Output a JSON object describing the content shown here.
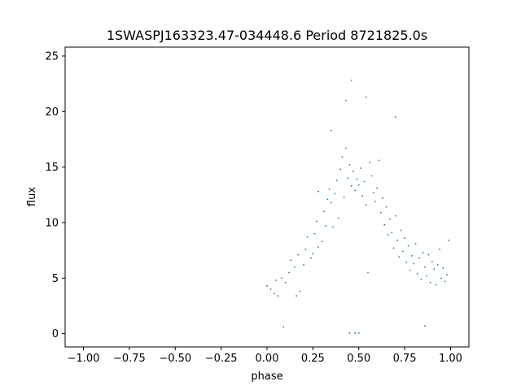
{
  "chart_data": {
    "type": "scatter",
    "title": "1SWASPJ163323.47-034448.6 Period 8721825.0s",
    "xlabel": "phase",
    "ylabel": "flux",
    "xlim": [
      -1.1,
      1.1
    ],
    "ylim": [
      -1.2,
      25.8
    ],
    "xticks": [
      -1.0,
      -0.75,
      -0.5,
      -0.25,
      0.0,
      0.25,
      0.5,
      0.75,
      1.0
    ],
    "xtick_labels": [
      "−1.00",
      "−0.75",
      "−0.50",
      "−0.25",
      "0.00",
      "0.25",
      "0.50",
      "0.75",
      "1.00"
    ],
    "yticks": [
      0,
      5,
      10,
      15,
      20,
      25
    ],
    "ytick_labels": [
      "0",
      "5",
      "10",
      "15",
      "20",
      "25"
    ],
    "grid": false,
    "series": [
      {
        "color": "#1f77b4",
        "points": [
          [
            0.0,
            4.3
          ],
          [
            0.02,
            4.0
          ],
          [
            0.04,
            3.6
          ],
          [
            0.05,
            4.8
          ],
          [
            0.06,
            3.4
          ],
          [
            0.08,
            5.0
          ],
          [
            0.1,
            4.6
          ],
          [
            0.12,
            5.5
          ],
          [
            0.13,
            6.6
          ],
          [
            0.15,
            6.0
          ],
          [
            0.17,
            7.1
          ],
          [
            0.18,
            3.8
          ],
          [
            0.2,
            6.2
          ],
          [
            0.21,
            7.6
          ],
          [
            0.22,
            8.7
          ],
          [
            0.24,
            6.8
          ],
          [
            0.25,
            7.2
          ],
          [
            0.26,
            9.0
          ],
          [
            0.27,
            10.1
          ],
          [
            0.28,
            7.8
          ],
          [
            0.3,
            8.3
          ],
          [
            0.31,
            11.0
          ],
          [
            0.32,
            9.7
          ],
          [
            0.33,
            12.1
          ],
          [
            0.34,
            13.0
          ],
          [
            0.35,
            11.8
          ],
          [
            0.36,
            9.6
          ],
          [
            0.37,
            12.6
          ],
          [
            0.38,
            13.8
          ],
          [
            0.39,
            10.4
          ],
          [
            0.4,
            14.8
          ],
          [
            0.41,
            15.9
          ],
          [
            0.42,
            12.3
          ],
          [
            0.43,
            16.7
          ],
          [
            0.44,
            14.0
          ],
          [
            0.45,
            15.2
          ],
          [
            0.46,
            13.3
          ],
          [
            0.47,
            14.6
          ],
          [
            0.48,
            12.9
          ],
          [
            0.49,
            13.9
          ],
          [
            0.5,
            13.4
          ],
          [
            0.51,
            14.9
          ],
          [
            0.52,
            12.4
          ],
          [
            0.53,
            13.7
          ],
          [
            0.54,
            11.6
          ],
          [
            0.55,
            5.5
          ],
          [
            0.56,
            15.4
          ],
          [
            0.57,
            14.2
          ],
          [
            0.58,
            12.7
          ],
          [
            0.59,
            11.9
          ],
          [
            0.6,
            13.1
          ],
          [
            0.61,
            15.6
          ],
          [
            0.62,
            10.9
          ],
          [
            0.63,
            12.2
          ],
          [
            0.64,
            9.8
          ],
          [
            0.65,
            11.4
          ],
          [
            0.66,
            8.9
          ],
          [
            0.67,
            10.3
          ],
          [
            0.68,
            9.1
          ],
          [
            0.69,
            7.7
          ],
          [
            0.7,
            10.6
          ],
          [
            0.71,
            8.4
          ],
          [
            0.72,
            6.9
          ],
          [
            0.73,
            9.3
          ],
          [
            0.74,
            7.4
          ],
          [
            0.75,
            8.6
          ],
          [
            0.76,
            6.4
          ],
          [
            0.77,
            7.9
          ],
          [
            0.78,
            5.7
          ],
          [
            0.79,
            7.0
          ],
          [
            0.8,
            6.3
          ],
          [
            0.81,
            8.1
          ],
          [
            0.82,
            5.4
          ],
          [
            0.83,
            6.8
          ],
          [
            0.84,
            4.9
          ],
          [
            0.85,
            7.3
          ],
          [
            0.86,
            6.0
          ],
          [
            0.87,
            5.2
          ],
          [
            0.88,
            7.1
          ],
          [
            0.89,
            4.6
          ],
          [
            0.9,
            6.5
          ],
          [
            0.91,
            5.8
          ],
          [
            0.92,
            4.4
          ],
          [
            0.93,
            6.2
          ],
          [
            0.94,
            7.6
          ],
          [
            0.95,
            5.0
          ],
          [
            0.96,
            5.9
          ],
          [
            0.97,
            4.7
          ],
          [
            0.98,
            5.3
          ],
          [
            0.99,
            8.4
          ],
          [
            0.45,
            0.05
          ],
          [
            0.48,
            0.05
          ],
          [
            0.5,
            0.05
          ],
          [
            0.46,
            22.8
          ],
          [
            0.54,
            21.3
          ],
          [
            0.43,
            21.0
          ],
          [
            0.7,
            19.5
          ],
          [
            0.86,
            0.7
          ],
          [
            0.09,
            0.6
          ],
          [
            0.16,
            3.4
          ],
          [
            0.28,
            12.8
          ],
          [
            0.35,
            18.3
          ]
        ]
      }
    ]
  }
}
